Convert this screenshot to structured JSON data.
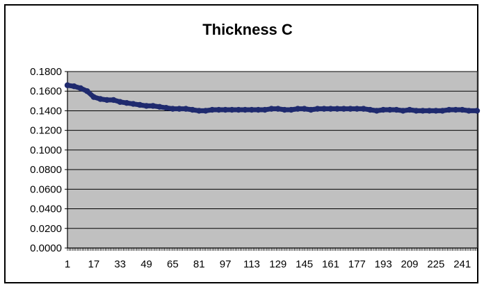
{
  "chart_data": {
    "type": "line",
    "title": "Thickness C",
    "xlabel": "",
    "ylabel": "",
    "x_tick_labels": [
      "1",
      "17",
      "33",
      "49",
      "65",
      "81",
      "97",
      "113",
      "129",
      "145",
      "161",
      "177",
      "193",
      "209",
      "225",
      "241"
    ],
    "y_tick_labels": [
      "0.0000",
      "0.0200",
      "0.0400",
      "0.0600",
      "0.0800",
      "0.1000",
      "0.1200",
      "0.1400",
      "0.1600",
      "0.1800"
    ],
    "xlim": [
      1,
      250
    ],
    "ylim": [
      0,
      0.18
    ],
    "grid": true,
    "legend": "none",
    "colors": {
      "series": "#1f2a6e",
      "plot_background": "#c0c0c0",
      "gridline": "#000000"
    },
    "series": [
      {
        "x": [
          1,
          5,
          9,
          13,
          17,
          21,
          25,
          29,
          33,
          37,
          41,
          45,
          49,
          53,
          57,
          61,
          65,
          69,
          73,
          77,
          81,
          85,
          89,
          93,
          97,
          101,
          105,
          109,
          113,
          117,
          121,
          125,
          129,
          133,
          137,
          141,
          145,
          149,
          153,
          157,
          161,
          165,
          169,
          173,
          177,
          181,
          185,
          189,
          193,
          197,
          201,
          205,
          209,
          213,
          217,
          221,
          225,
          229,
          233,
          237,
          241,
          245,
          250
        ],
        "y": [
          0.166,
          0.165,
          0.163,
          0.16,
          0.154,
          0.152,
          0.151,
          0.151,
          0.149,
          0.148,
          0.147,
          0.146,
          0.145,
          0.145,
          0.144,
          0.143,
          0.142,
          0.142,
          0.142,
          0.141,
          0.14,
          0.14,
          0.141,
          0.141,
          0.141,
          0.141,
          0.141,
          0.141,
          0.141,
          0.141,
          0.141,
          0.142,
          0.142,
          0.141,
          0.141,
          0.142,
          0.142,
          0.141,
          0.142,
          0.142,
          0.142,
          0.142,
          0.142,
          0.142,
          0.142,
          0.142,
          0.141,
          0.14,
          0.141,
          0.141,
          0.141,
          0.14,
          0.141,
          0.14,
          0.14,
          0.14,
          0.14,
          0.14,
          0.141,
          0.141,
          0.141,
          0.14,
          0.14
        ]
      }
    ]
  }
}
